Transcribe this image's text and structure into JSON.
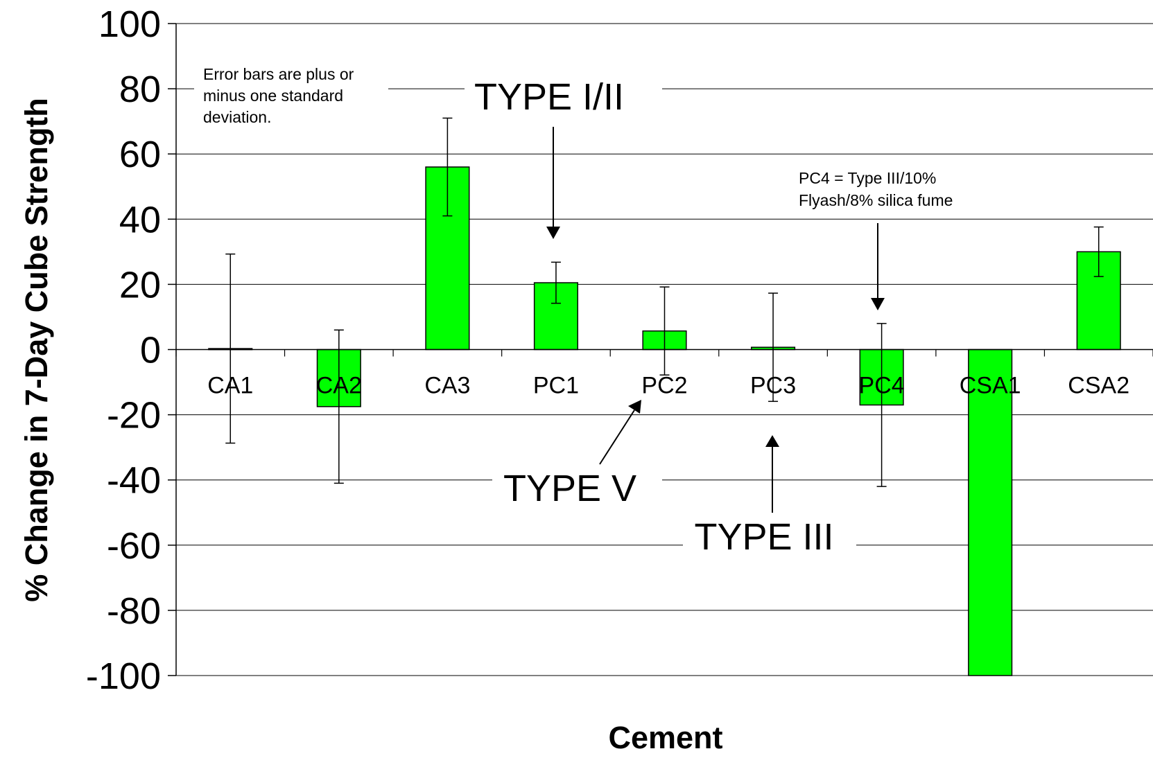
{
  "chart_data": {
    "type": "bar",
    "categories": [
      "CA1",
      "CA2",
      "CA3",
      "PC1",
      "PC2",
      "PC3",
      "PC4",
      "CSA1",
      "CSA2"
    ],
    "values": [
      0.3,
      -17.5,
      56,
      20.5,
      5.7,
      0.7,
      -17,
      -100,
      30
    ],
    "error": [
      29,
      23.5,
      15,
      6.3,
      13.5,
      16.6,
      25,
      0,
      7.6
    ],
    "bar_color": "#00ff00",
    "xlabel": "Cement",
    "ylabel": "% Change in 7-Day Cube Strength",
    "ylim": [
      -100,
      100
    ],
    "yticks": [
      100,
      80,
      60,
      40,
      20,
      0,
      -20,
      -40,
      -60,
      -80,
      -100
    ],
    "grid": true,
    "annotations": {
      "error_note": [
        "Error bars are plus or",
        "minus one standard",
        "deviation."
      ],
      "type_1_2": "TYPE I/II",
      "type_5": "TYPE V",
      "type_3": "TYPE III",
      "pc4_note": [
        "PC4 = Type III/10%",
        "Flyash/8% silica fume"
      ]
    }
  }
}
